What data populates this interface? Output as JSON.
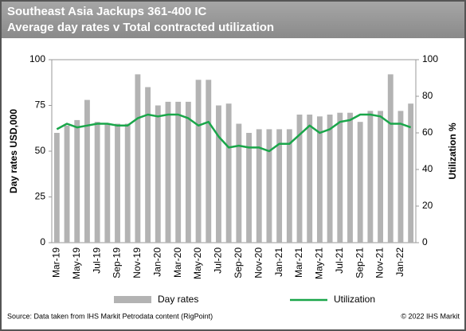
{
  "chart_data": {
    "type": "bar",
    "title": "Southeast Asia Jackups 361-400 IC",
    "subtitle": "Average day rates v Total contracted utilization",
    "ylabel": "Day rates USD,000",
    "y2label": "Utilization %",
    "categories": [
      "Mar-19",
      null,
      "May-19",
      null,
      "Jul-19",
      null,
      "Sep-19",
      null,
      "Nov-19",
      null,
      "Jan-20",
      null,
      "Mar-20",
      null,
      "May-20",
      null,
      "Jul-20",
      null,
      "Sep-20",
      null,
      "Nov-20",
      null,
      "Jan-21",
      null,
      "Mar-21",
      null,
      "May-21",
      null,
      "Jul-21",
      null,
      "Sep-21",
      null,
      "Nov-21",
      null,
      "Jan-22",
      null
    ],
    "series": [
      {
        "name": "Day rates",
        "type": "bar",
        "color": "#b3b3b3",
        "values": [
          60,
          64,
          67,
          78,
          66,
          65,
          65,
          65,
          92,
          85,
          75,
          77,
          77,
          77,
          89,
          89,
          75,
          76,
          65,
          60,
          62,
          62,
          62,
          62,
          70,
          70,
          69,
          70,
          71,
          71,
          66,
          72,
          72,
          92,
          72,
          76
        ]
      },
      {
        "name": "Utilization",
        "type": "line",
        "axis": "y2",
        "color": "#1aa64a",
        "values": [
          62,
          65,
          63,
          64,
          65,
          65,
          64,
          64,
          68,
          70,
          69,
          70,
          70,
          68,
          64,
          66,
          58,
          52,
          53,
          52,
          52,
          50,
          54,
          54,
          59,
          64,
          60,
          62,
          66,
          67,
          70,
          70,
          69,
          65,
          65,
          63
        ]
      }
    ],
    "ylim": [
      0,
      100
    ],
    "yticks": [
      0,
      25,
      50,
      75,
      100
    ],
    "y2lim": [
      0,
      100
    ],
    "y2ticks": [
      0,
      20,
      40,
      60,
      80,
      100
    ],
    "source": "Source: Data taken from IHS Markit Petrodata content (RigPoint)",
    "copyright": "© 2022 IHS Markit"
  }
}
